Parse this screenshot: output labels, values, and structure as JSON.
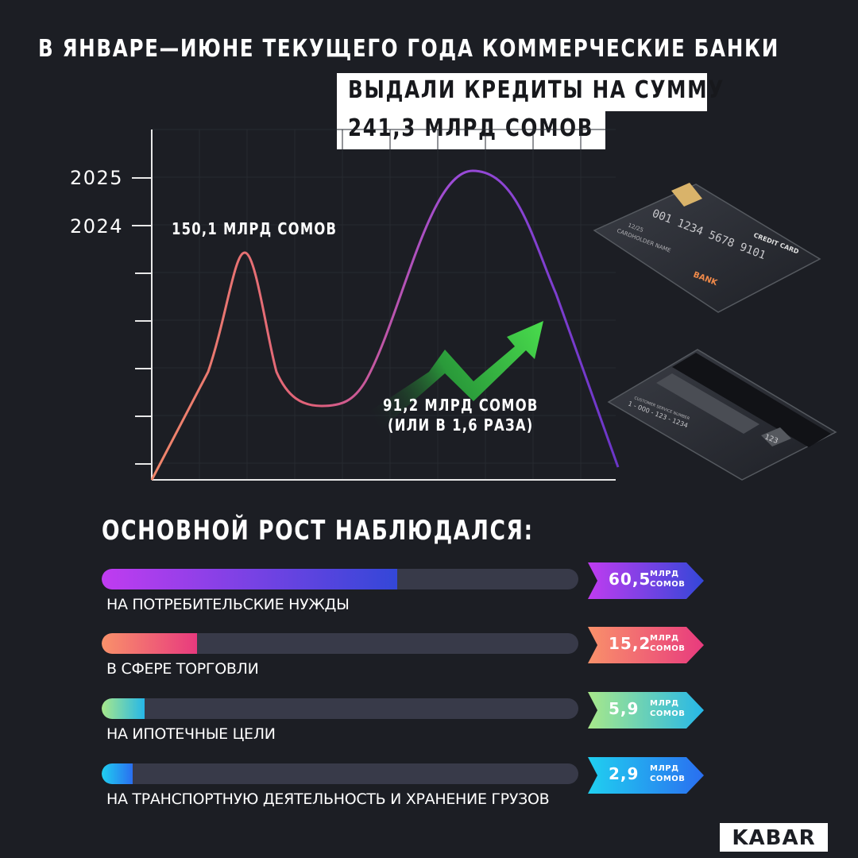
{
  "headline": {
    "line1": "В ЯНВАРЕ—ИЮНЕ ТЕКУЩЕГО ГОДА КОММЕРЧЕСКИЕ БАНКИ",
    "line2": "ВЫДАЛИ КРЕДИТЫ НА СУММУ",
    "line3": "241,3 МЛРД СОМОВ"
  },
  "chart": {
    "years": [
      "2025",
      "2024"
    ],
    "annotation_peak": "150,1 МЛРД СОМОВ",
    "annotation_growth_1": "91,2 МЛРД СОМОВ",
    "annotation_growth_2": "(ИЛИ В 1,6 РАЗА)",
    "line_colors": [
      "#f0876a",
      "#e0607a",
      "#9b4bd8",
      "#6a35c8"
    ],
    "arrow_color": "#3ed14a"
  },
  "cards": {
    "front": {
      "number": "001 1234 5678 9101",
      "expiry": "12/25",
      "holder": "CARDHOLDER NAME",
      "type": "CREDIT CARD",
      "brand": "BANK"
    },
    "back": {
      "service_label": "CUSTOMER SERVICE NUMBER",
      "phone": "1 - 000 - 123 - 1234",
      "cvv": "123"
    }
  },
  "section_title": "ОСНОВНОЙ РОСТ НАБЛЮДАЛСЯ:",
  "bars": [
    {
      "label": "НА ПОТРЕБИТЕЛЬСКИЕ НУЖДЫ",
      "value": "60,5",
      "unit1": "МЛРД",
      "unit2": "СОМОВ",
      "fraction": 0.62,
      "color_from": "#c03cf0",
      "color_to": "#3347d8"
    },
    {
      "label": "В СФЕРЕ ТОРГОВЛИ",
      "value": "15,2",
      "unit1": "МЛРД",
      "unit2": "СОМОВ",
      "fraction": 0.2,
      "color_from": "#f9916a",
      "color_to": "#e83a7e"
    },
    {
      "label": "НА ИПОТЕЧНЫЕ ЦЕЛИ",
      "value": "5,9",
      "unit1": "МЛРД",
      "unit2": "СОМОВ",
      "fraction": 0.09,
      "color_from": "#a8e88a",
      "color_to": "#26b7e8"
    },
    {
      "label": "НА ТРАНСПОРТНУЮ ДЕЯТЕЛЬНОСТЬ И ХРАНЕНИЕ ГРУЗОВ",
      "value": "2,9",
      "unit1": "МЛРД",
      "unit2": "СОМОВ",
      "fraction": 0.065,
      "color_from": "#20d0f0",
      "color_to": "#2a6ef0"
    }
  ],
  "logo": "KABAR"
}
